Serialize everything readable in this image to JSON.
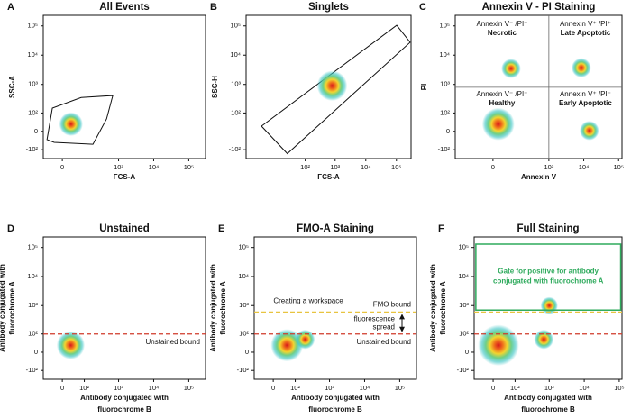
{
  "chart_data": [
    {
      "type": "flow",
      "panel": "A",
      "title": "All Events",
      "xlabel": [
        "FCS-A"
      ],
      "ylabel": [
        "SSC-A"
      ],
      "xlim": [
        -80,
        300000
      ],
      "ylim": [
        -210,
        230000
      ],
      "xticks": [
        {
          "value": 0,
          "label": "0"
        },
        {
          "value": 1000,
          "label": "10³"
        },
        {
          "value": 10000,
          "label": "10⁴"
        },
        {
          "value": 100000,
          "label": "10⁵"
        }
      ],
      "yticks": [
        {
          "value": 100000,
          "label": "10⁵"
        },
        {
          "value": 10000,
          "label": "10⁴"
        },
        {
          "value": 1000,
          "label": "10³"
        },
        {
          "value": 100,
          "label": "10²"
        },
        {
          "value": 0,
          "label": "0"
        },
        {
          "value": -100,
          "label": "-10²"
        }
      ],
      "populations": [
        {
          "x": 30,
          "y": 30,
          "size": 1.1
        }
      ],
      "gate": {
        "x": [
          -59,
          -35,
          79,
          684,
          454,
          183,
          -28
        ],
        "y": [
          -35,
          151,
          355,
          415,
          57,
          -60,
          -49
        ]
      }
    },
    {
      "type": "flow",
      "panel": "B",
      "title": "Singlets",
      "xlabel": [
        "FCS-A"
      ],
      "ylabel": [
        "SSC-H"
      ],
      "xlim": [
        -500,
        300000
      ],
      "ylim": [
        -210,
        230000
      ],
      "xticks": [
        {
          "value": 100,
          "label": "10²"
        },
        {
          "value": 1000,
          "label": "10³"
        },
        {
          "value": 10000,
          "label": "10⁴"
        },
        {
          "value": 100000,
          "label": "10⁵"
        }
      ],
      "yticks": [
        {
          "value": 100000,
          "label": "10⁵"
        },
        {
          "value": 10000,
          "label": "10⁴"
        },
        {
          "value": 1000,
          "label": "10³"
        },
        {
          "value": 100,
          "label": "10²"
        },
        {
          "value": -100,
          "label": "-10²"
        }
      ],
      "populations": [
        {
          "x": 800,
          "y": 900,
          "size": 1.4
        }
      ],
      "gate": {
        "x": [
          -154,
          102000,
          280000,
          5
        ],
        "y": [
          21,
          105000,
          27500,
          -140
        ]
      }
    },
    {
      "type": "flow",
      "panel": "C",
      "title": "Annexin V - PI Staining",
      "xlabel": [
        "Annexin V"
      ],
      "ylabel": [
        "PI"
      ],
      "xlim": [
        -300,
        125000
      ],
      "ylim": [
        -210,
        230000
      ],
      "xticks": [
        {
          "value": 0,
          "label": "0"
        },
        {
          "value": 1000,
          "label": "10³"
        },
        {
          "value": 10000,
          "label": "10⁴"
        },
        {
          "value": 100000,
          "label": "10⁵"
        }
      ],
      "yticks": [
        {
          "value": 100000,
          "label": "10⁵"
        },
        {
          "value": 10000,
          "label": "10⁴"
        },
        {
          "value": 1000,
          "label": "10³"
        },
        {
          "value": 100,
          "label": "10²"
        },
        {
          "value": 0,
          "label": "0"
        },
        {
          "value": -100,
          "label": "-10²"
        }
      ],
      "populations": [
        {
          "x": 75,
          "y": 3500,
          "size": 0.9
        },
        {
          "x": 8500,
          "y": 3700,
          "size": 0.9
        },
        {
          "x": 18,
          "y": 30,
          "size": 1.5
        },
        {
          "x": 14500,
          "y": 3,
          "size": 0.9
        }
      ],
      "quadrant": {
        "x": 1000,
        "y": 800,
        "labels": [
          {
            "text": "Annexin V⁻ /PI⁺",
            "name": "Necrotic"
          },
          {
            "text": "Annexin V⁺ /PI⁺",
            "name": "Late Apoptotic"
          },
          {
            "text": "Annexin V⁻ /PI⁻",
            "name": "Healthy"
          },
          {
            "text": "Annexin V⁺ /PI⁻",
            "name": "Early Apoptotic"
          }
        ]
      }
    },
    {
      "type": "flow",
      "panel": "D",
      "title": "Unstained",
      "xlabel": [
        "Antibody conjugated with",
        "fluorochrome B"
      ],
      "ylabel": [
        "Antibody conjugated with",
        "fluorochrome A"
      ],
      "xlim": [
        -80,
        300000
      ],
      "ylim": [
        -210,
        230000
      ],
      "xticks": [
        {
          "value": 0,
          "label": "0"
        },
        {
          "value": 100,
          "label": "10²"
        },
        {
          "value": 1000,
          "label": "10³"
        },
        {
          "value": 10000,
          "label": "10⁴"
        },
        {
          "value": 100000,
          "label": "10⁵"
        }
      ],
      "yticks": [
        {
          "value": 100000,
          "label": "10⁵"
        },
        {
          "value": 10000,
          "label": "10⁴"
        },
        {
          "value": 1000,
          "label": "10³"
        },
        {
          "value": 100,
          "label": "10²"
        },
        {
          "value": 0,
          "label": "0"
        },
        {
          "value": -100,
          "label": "-10²"
        }
      ],
      "populations": [
        {
          "x": 29,
          "y": 29,
          "size": 1.3
        }
      ],
      "thresholds": [
        {
          "y": 100,
          "label": "Unstained bound",
          "color": "#d03a2a"
        }
      ]
    },
    {
      "type": "flow",
      "panel": "E",
      "title": "FMO-A Staining",
      "xlabel": [
        "Antibody conjugated with",
        "fluorochrome B"
      ],
      "ylabel": [
        "Antibody conjugated with",
        "fluorochrome A"
      ],
      "xlim": [
        -80,
        300000
      ],
      "ylim": [
        -210,
        230000
      ],
      "xticks": [
        {
          "value": 0,
          "label": "0"
        },
        {
          "value": 100,
          "label": "10²"
        },
        {
          "value": 1000,
          "label": "10³"
        },
        {
          "value": 10000,
          "label": "10⁴"
        },
        {
          "value": 100000,
          "label": "10⁵"
        }
      ],
      "yticks": [
        {
          "value": 100000,
          "label": "10⁵"
        },
        {
          "value": 10000,
          "label": "10⁴"
        },
        {
          "value": 1000,
          "label": "10³"
        },
        {
          "value": 100,
          "label": "10²"
        },
        {
          "value": 0,
          "label": "0"
        },
        {
          "value": -100,
          "label": "-10²"
        }
      ],
      "populations": [
        {
          "x": 51,
          "y": 29,
          "size": 1.5
        },
        {
          "x": 200,
          "y": 60,
          "size": 0.9
        }
      ],
      "thresholds": [
        {
          "y": 100,
          "label": "Unstained bound",
          "color": "#d03a2a"
        },
        {
          "y": 600,
          "label": "FMO bound",
          "color": "#e8c440"
        }
      ],
      "annotations": [
        "Creating a workspace",
        [
          "fluorescence",
          "spread"
        ]
      ]
    },
    {
      "type": "flow",
      "panel": "F",
      "title": "Full Staining",
      "xlabel": [
        "Antibody conjugated with",
        "fluorochrome B"
      ],
      "ylabel": [
        "Antibody conjugated with",
        "fluorochrome A"
      ],
      "xlim": [
        -80,
        120000
      ],
      "ylim": [
        -210,
        230000
      ],
      "xticks": [
        {
          "value": 0,
          "label": "0"
        },
        {
          "value": 100,
          "label": "10²"
        },
        {
          "value": 1000,
          "label": "10³"
        },
        {
          "value": 10000,
          "label": "10⁴"
        },
        {
          "value": 100000,
          "label": "10⁵"
        }
      ],
      "yticks": [
        {
          "value": 100000,
          "label": "10⁵"
        },
        {
          "value": 10000,
          "label": "10⁴"
        },
        {
          "value": 1000,
          "label": "10³"
        },
        {
          "value": 100,
          "label": "10²"
        },
        {
          "value": 0,
          "label": "0"
        },
        {
          "value": -100,
          "label": "-10²"
        }
      ],
      "populations": [
        {
          "x": 18,
          "y": 29,
          "size": 1.9
        },
        {
          "x": 700,
          "y": 60,
          "size": 0.9
        },
        {
          "x": 1000,
          "y": 1000,
          "size": 0.8
        }
      ],
      "thresholds": [
        {
          "y": 100,
          "color": "#d03a2a"
        },
        {
          "y": 600,
          "color": "#e8c440"
        }
      ],
      "gate_rect": {
        "x": [
          -70,
          110000
        ],
        "y": [
          700,
          130000
        ],
        "color": "#2eaa5c",
        "label": [
          "Gate for positive for antibody",
          "conjugated with fluorochrome A"
        ]
      }
    }
  ]
}
